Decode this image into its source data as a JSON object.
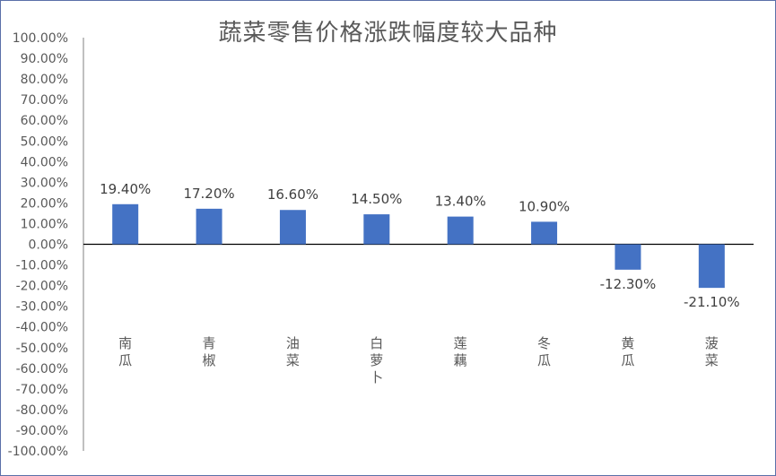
{
  "chart_data": {
    "type": "bar",
    "title": "蔬菜零售价格涨跌幅度较大品种",
    "categories": [
      "南瓜",
      "青椒",
      "油菜",
      "白萝卜",
      "莲藕",
      "冬瓜",
      "黄瓜",
      "菠菜"
    ],
    "values": [
      19.4,
      17.2,
      16.6,
      14.5,
      13.4,
      10.9,
      -12.3,
      -21.1
    ],
    "data_labels": [
      "19.40%",
      "17.20%",
      "16.60%",
      "14.50%",
      "13.40%",
      "10.90%",
      "-12.30%",
      "-21.10%"
    ],
    "ylim": [
      -100,
      100
    ],
    "ytick_step": 10,
    "ytick_labels": [
      "100.00%",
      "90.00%",
      "80.00%",
      "70.00%",
      "60.00%",
      "50.00%",
      "40.00%",
      "30.00%",
      "20.00%",
      "10.00%",
      "0.00%",
      "-10.00%",
      "-20.00%",
      "-30.00%",
      "-40.00%",
      "-50.00%",
      "-60.00%",
      "-70.00%",
      "-80.00%",
      "-90.00%",
      "-100.00%"
    ],
    "xlabel": "",
    "ylabel": "",
    "grid": false,
    "legend": "none",
    "bar_color": "#4472c4"
  }
}
